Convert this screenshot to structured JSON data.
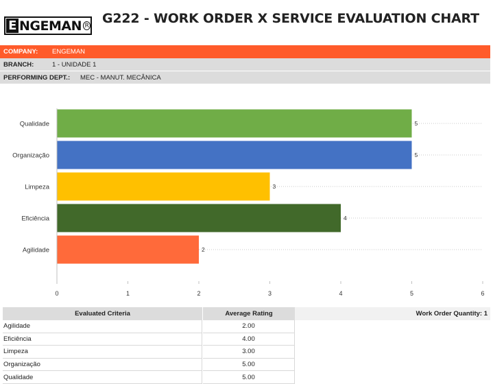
{
  "header": {
    "logo_letter": "E",
    "logo_rest": "NGEMAN",
    "logo_reg": "R",
    "title": "G222 - WORK ORDER X SERVICE EVALUATION CHART"
  },
  "info": {
    "company_label": "COMPANY:",
    "company_value": "ENGEMAN",
    "branch_label": "BRANCH:",
    "branch_value": "1 - UNIDADE 1",
    "dept_label": "PERFORMING DEPT.:",
    "dept_value": "MEC - MANUT. MECÂNICA"
  },
  "colors": {
    "accent": "#ff5b2a",
    "header_gray": "#dcdcdc"
  },
  "chart_data": {
    "type": "bar",
    "orientation": "horizontal",
    "categories": [
      "Qualidade",
      "Organização",
      "Limpeza",
      "Eficiência",
      "Agilidade"
    ],
    "values": [
      5,
      5,
      3,
      4,
      2
    ],
    "bar_colors": [
      "#70ad47",
      "#4472c4",
      "#ffc000",
      "#41692a",
      "#ff6a3a"
    ],
    "data_labels": [
      "5",
      "5",
      "3",
      "4",
      "2"
    ],
    "xlim": [
      0,
      6
    ],
    "x_ticks": [
      "0",
      "1",
      "2",
      "3",
      "4",
      "5",
      "6"
    ],
    "grid": "horizontal dotted",
    "title": "",
    "xlabel": "",
    "ylabel": ""
  },
  "table": {
    "headers": [
      "Evaluated Criteria",
      "Average Rating"
    ],
    "rows": [
      [
        "Agilidade",
        "2.00"
      ],
      [
        "Eficiência",
        "4.00"
      ],
      [
        "Limpeza",
        "3.00"
      ],
      [
        "Organização",
        "5.00"
      ],
      [
        "Qualidade",
        "5.00"
      ]
    ],
    "quantity_label": "Work Order Quantity: 1"
  }
}
